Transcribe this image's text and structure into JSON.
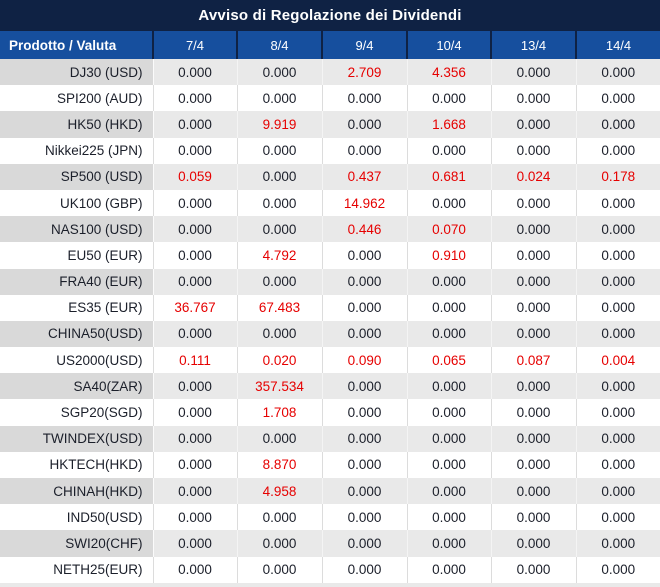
{
  "title": "Avviso di Regolazione dei Dividendi",
  "table": {
    "columns": [
      "Prodotto / Valuta",
      "7/4",
      "8/4",
      "9/4",
      "10/4",
      "13/4",
      "14/4"
    ],
    "rows": [
      {
        "product": "DJ30 (USD)",
        "values": [
          "0.000",
          "0.000",
          "2.709",
          "4.356",
          "0.000",
          "0.000"
        ],
        "red": [
          0,
          0,
          1,
          1,
          0,
          0
        ]
      },
      {
        "product": "SPI200 (AUD)",
        "values": [
          "0.000",
          "0.000",
          "0.000",
          "0.000",
          "0.000",
          "0.000"
        ],
        "red": [
          0,
          0,
          0,
          0,
          0,
          0
        ]
      },
      {
        "product": "HK50 (HKD)",
        "values": [
          "0.000",
          "9.919",
          "0.000",
          "1.668",
          "0.000",
          "0.000"
        ],
        "red": [
          0,
          1,
          0,
          1,
          0,
          0
        ]
      },
      {
        "product": "Nikkei225 (JPN)",
        "values": [
          "0.000",
          "0.000",
          "0.000",
          "0.000",
          "0.000",
          "0.000"
        ],
        "red": [
          0,
          0,
          0,
          0,
          0,
          0
        ]
      },
      {
        "product": "SP500 (USD)",
        "values": [
          "0.059",
          "0.000",
          "0.437",
          "0.681",
          "0.024",
          "0.178"
        ],
        "red": [
          1,
          0,
          1,
          1,
          1,
          1
        ]
      },
      {
        "product": "UK100 (GBP)",
        "values": [
          "0.000",
          "0.000",
          "14.962",
          "0.000",
          "0.000",
          "0.000"
        ],
        "red": [
          0,
          0,
          1,
          0,
          0,
          0
        ]
      },
      {
        "product": "NAS100 (USD)",
        "values": [
          "0.000",
          "0.000",
          "0.446",
          "0.070",
          "0.000",
          "0.000"
        ],
        "red": [
          0,
          0,
          1,
          1,
          0,
          0
        ]
      },
      {
        "product": "EU50 (EUR)",
        "values": [
          "0.000",
          "4.792",
          "0.000",
          "0.910",
          "0.000",
          "0.000"
        ],
        "red": [
          0,
          1,
          0,
          1,
          0,
          0
        ]
      },
      {
        "product": "FRA40 (EUR)",
        "values": [
          "0.000",
          "0.000",
          "0.000",
          "0.000",
          "0.000",
          "0.000"
        ],
        "red": [
          0,
          0,
          0,
          0,
          0,
          0
        ]
      },
      {
        "product": "ES35 (EUR)",
        "values": [
          "36.767",
          "67.483",
          "0.000",
          "0.000",
          "0.000",
          "0.000"
        ],
        "red": [
          1,
          1,
          0,
          0,
          0,
          0
        ]
      },
      {
        "product": "CHINA50(USD)",
        "values": [
          "0.000",
          "0.000",
          "0.000",
          "0.000",
          "0.000",
          "0.000"
        ],
        "red": [
          0,
          0,
          0,
          0,
          0,
          0
        ]
      },
      {
        "product": "US2000(USD)",
        "values": [
          "0.111",
          "0.020",
          "0.090",
          "0.065",
          "0.087",
          "0.004"
        ],
        "red": [
          1,
          1,
          1,
          1,
          1,
          1
        ]
      },
      {
        "product": "SA40(ZAR)",
        "values": [
          "0.000",
          "357.534",
          "0.000",
          "0.000",
          "0.000",
          "0.000"
        ],
        "red": [
          0,
          1,
          0,
          0,
          0,
          0
        ]
      },
      {
        "product": "SGP20(SGD)",
        "values": [
          "0.000",
          "1.708",
          "0.000",
          "0.000",
          "0.000",
          "0.000"
        ],
        "red": [
          0,
          1,
          0,
          0,
          0,
          0
        ]
      },
      {
        "product": "TWINDEX(USD)",
        "values": [
          "0.000",
          "0.000",
          "0.000",
          "0.000",
          "0.000",
          "0.000"
        ],
        "red": [
          0,
          0,
          0,
          0,
          0,
          0
        ]
      },
      {
        "product": "HKTECH(HKD)",
        "values": [
          "0.000",
          "8.870",
          "0.000",
          "0.000",
          "0.000",
          "0.000"
        ],
        "red": [
          0,
          1,
          0,
          0,
          0,
          0
        ]
      },
      {
        "product": "CHINAH(HKD)",
        "values": [
          "0.000",
          "4.958",
          "0.000",
          "0.000",
          "0.000",
          "0.000"
        ],
        "red": [
          0,
          1,
          0,
          0,
          0,
          0
        ]
      },
      {
        "product": "IND50(USD)",
        "values": [
          "0.000",
          "0.000",
          "0.000",
          "0.000",
          "0.000",
          "0.000"
        ],
        "red": [
          0,
          0,
          0,
          0,
          0,
          0
        ]
      },
      {
        "product": "SWI20(CHF)",
        "values": [
          "0.000",
          "0.000",
          "0.000",
          "0.000",
          "0.000",
          "0.000"
        ],
        "red": [
          0,
          0,
          0,
          0,
          0,
          0
        ]
      },
      {
        "product": "NETH25(EUR)",
        "values": [
          "0.000",
          "0.000",
          "0.000",
          "0.000",
          "0.000",
          "0.000"
        ],
        "red": [
          0,
          0,
          0,
          0,
          0,
          0
        ]
      }
    ]
  },
  "colors": {
    "title_bg": "#0f2244",
    "header_bg": "#164f9e",
    "header_separator": "#0f2244",
    "stripe_row_bg": "#e9e9e9",
    "stripe_first_col_bg": "#d9d9d9",
    "highlight_value": "#e60000",
    "text": "#1b1f2a"
  }
}
